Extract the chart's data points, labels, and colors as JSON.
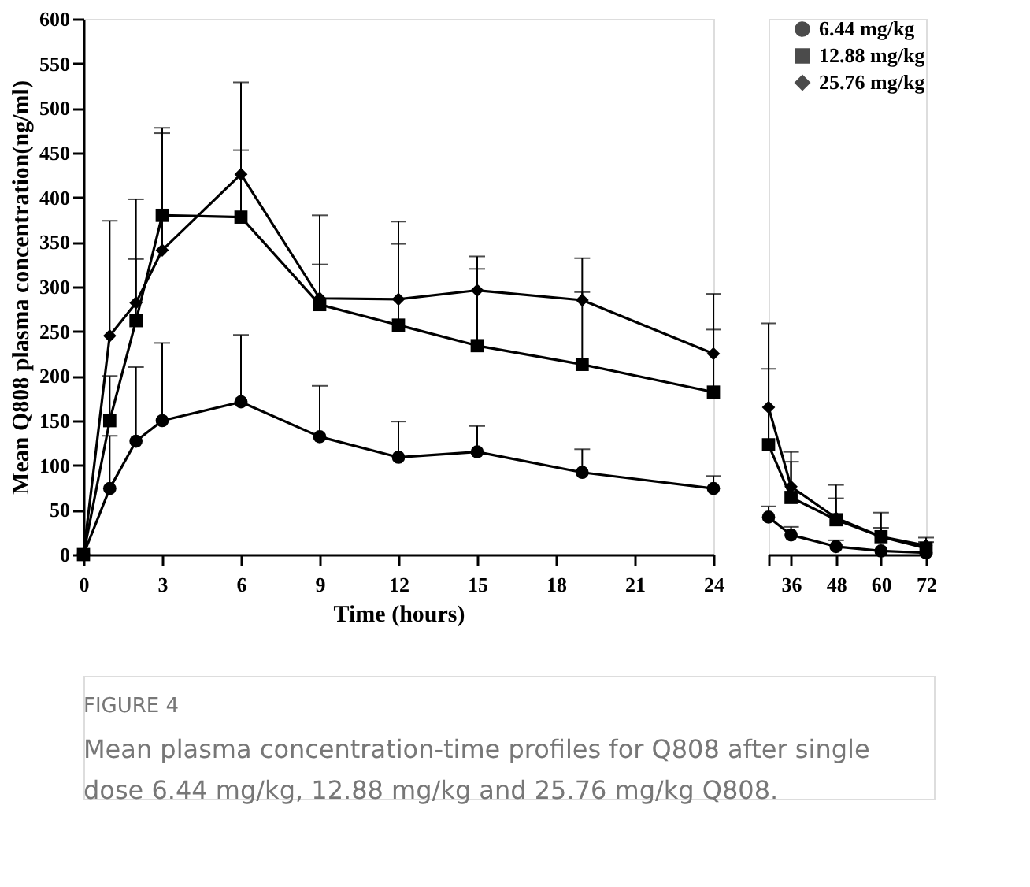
{
  "chart_data": [
    {
      "type": "line",
      "ylabel": "Mean Q808 plasma concentration(ng/ml)",
      "xlabel": "Time (hours)",
      "annotations": [
        "FIGURE 4",
        "Mean plasma concentration-time profiles for Q808 after single dose 6.44 mg/kg, 12.88 mg/kg and 25.76 mg/kg Q808."
      ],
      "x": [
        0,
        1,
        2,
        3,
        6,
        9,
        12,
        15,
        19,
        24
      ],
      "xlim": [
        0,
        24
      ],
      "xticks": [
        0,
        3,
        6,
        9,
        12,
        15,
        18,
        21,
        24
      ],
      "ylim": [
        0,
        600
      ],
      "yticks": [
        0,
        50,
        100,
        150,
        200,
        250,
        300,
        350,
        400,
        450,
        500,
        550,
        600
      ],
      "grid": false,
      "legend": false,
      "series": [
        {
          "color": "#000000",
          "marker": "circle",
          "values": [
            0,
            74,
            127,
            150,
            171,
            132,
            109,
            115,
            92,
            74
          ],
          "errors": [
            null,
            [
              74,
              133
            ],
            [
              127,
              210
            ],
            [
              150,
              237
            ],
            [
              171,
              246
            ],
            [
              132,
              189
            ],
            [
              109,
              149
            ],
            [
              115,
              144
            ],
            [
              92,
              118
            ],
            [
              74,
              88
            ]
          ]
        },
        {
          "color": "#000000",
          "marker": "square",
          "values": [
            0,
            150,
            262,
            380,
            378,
            280,
            257,
            234,
            213,
            182
          ],
          "errors": [
            null,
            [
              150,
              200
            ],
            [
              262,
              331
            ],
            [
              380,
              478
            ],
            [
              378,
              453
            ],
            [
              280,
              325
            ],
            [
              257,
              348
            ],
            [
              234,
              320
            ],
            [
              213,
              294
            ],
            [
              182,
              252
            ]
          ]
        },
        {
          "color": "#000000",
          "marker": "diamond",
          "values": [
            0,
            245,
            282,
            341,
            426,
            287,
            286,
            296,
            285,
            225
          ],
          "errors": [
            null,
            [
              245,
              374
            ],
            [
              282,
              398
            ],
            [
              341,
              472
            ],
            [
              426,
              529
            ],
            [
              287,
              380
            ],
            [
              286,
              373
            ],
            [
              296,
              334
            ],
            [
              285,
              332
            ],
            [
              225,
              292
            ]
          ]
        }
      ]
    },
    {
      "type": "line",
      "x": [
        30,
        36,
        48,
        60,
        72
      ],
      "xlim": [
        30,
        72
      ],
      "xticks": [
        {
          "value": 30,
          "label": null
        },
        36,
        48,
        60,
        72
      ],
      "ylim": [
        0,
        600
      ],
      "tick_labels": "x",
      "grid": false,
      "legend": "top right",
      "series": [
        {
          "name": "6.44 mg/kg",
          "color": "#000000",
          "marker": "circle",
          "values": [
            42,
            22,
            9,
            4,
            2
          ],
          "errors": [
            [
              42,
              54
            ],
            [
              22,
              31
            ],
            [
              9,
              16
            ],
            null,
            null
          ]
        },
        {
          "name": "12.88 mg/kg",
          "color": "#000000",
          "marker": "square",
          "values": [
            123,
            64,
            39,
            20,
            7
          ],
          "errors": [
            [
              123,
              208
            ],
            [
              64,
              104
            ],
            [
              39,
              63
            ],
            [
              20,
              30
            ],
            [
              7,
              14
            ]
          ]
        },
        {
          "name": "25.76 mg/kg",
          "color": "#000000",
          "marker": "diamond",
          "values": [
            165,
            76,
            41,
            20,
            10
          ],
          "errors": [
            [
              165,
              259
            ],
            [
              76,
              115
            ],
            [
              41,
              78
            ],
            [
              20,
              47
            ],
            [
              10,
              19
            ]
          ]
        }
      ]
    }
  ]
}
